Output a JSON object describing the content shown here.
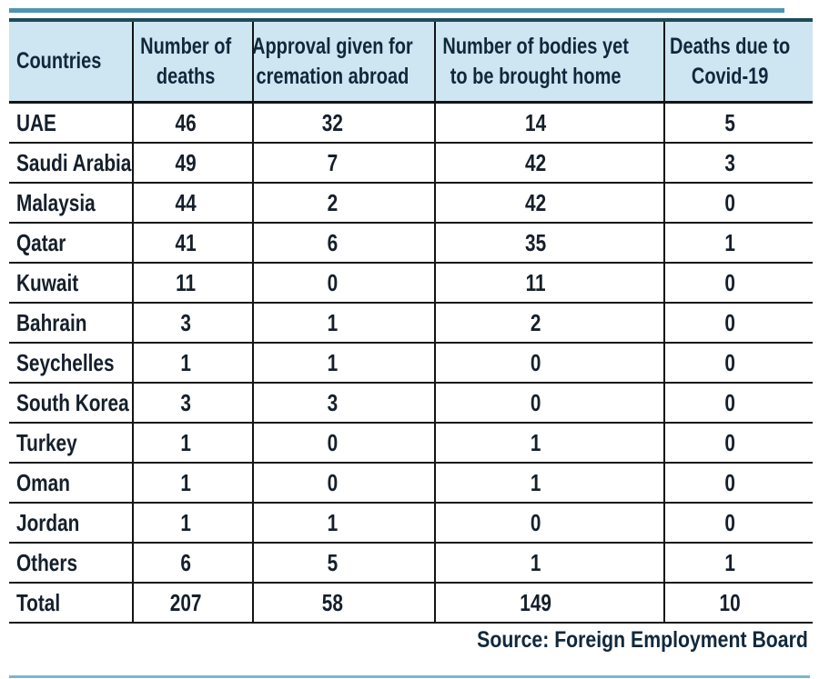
{
  "colors": {
    "top_accent_rule": "#4f95b2",
    "header_background": "#cee5f2",
    "header_top_border": "#1f4a5a",
    "grid_line": "#141414",
    "body_text": "#151f2b",
    "header_text": "#10283c"
  },
  "chart_data": {
    "type": "table",
    "columns": [
      "Countries",
      "Number of deaths",
      "Approval given for cremation abroad",
      "Number of bodies yet to be brought home",
      "Deaths due to Covid-19"
    ],
    "rows": [
      [
        "UAE",
        "46",
        "32",
        "14",
        "5"
      ],
      [
        "Saudi Arabia",
        "49",
        "7",
        "42",
        "3"
      ],
      [
        "Malaysia",
        "44",
        "2",
        "42",
        "0"
      ],
      [
        "Qatar",
        "41",
        "6",
        "35",
        "1"
      ],
      [
        "Kuwait",
        "11",
        "0",
        "11",
        "0"
      ],
      [
        "Bahrain",
        "3",
        "1",
        "2",
        "0"
      ],
      [
        "Seychelles",
        "1",
        "1",
        "0",
        "0"
      ],
      [
        "South Korea",
        "3",
        "3",
        "0",
        "0"
      ],
      [
        "Turkey",
        "1",
        "0",
        "1",
        "0"
      ],
      [
        "Oman",
        "1",
        "0",
        "1",
        "0"
      ],
      [
        "Jordan",
        "1",
        "1",
        "0",
        "0"
      ],
      [
        "Others",
        "6",
        "5",
        "1",
        "1"
      ],
      [
        "Total",
        "207",
        "58",
        "149",
        "10"
      ]
    ],
    "totals_row_label": "Total",
    "source": "Source: Foreign Employment Board"
  }
}
